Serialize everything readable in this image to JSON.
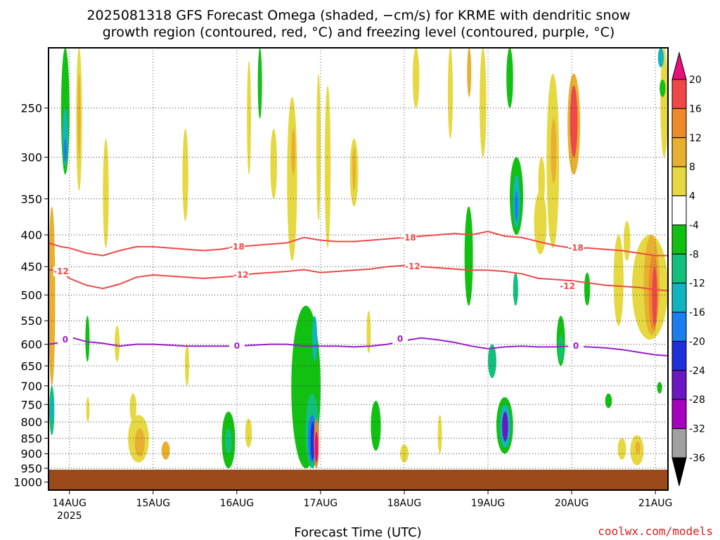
{
  "title": {
    "line1": "2025081318 GFS Forecast Omega (shaded, −cm/s) for KRME with dendritic snow",
    "line2": "growth region (contoured, red, °C) and freezing level (contoured, purple, °C)"
  },
  "credit": "coolwx.com/models",
  "chart_data": {
    "type": "heatmap",
    "xlabel": "Forecast Time (UTC)",
    "ylabel": "",
    "x_ticks": [
      "14AUG",
      "15AUG",
      "16AUG",
      "17AUG",
      "18AUG",
      "19AUG",
      "20AUG",
      "21AUG"
    ],
    "x_year_label": "2025",
    "xlim_days": [
      13.75,
      21.15
    ],
    "y_ticks": [
      250,
      300,
      350,
      400,
      450,
      500,
      550,
      600,
      650,
      700,
      750,
      800,
      850,
      900,
      950,
      1000
    ],
    "ylim_hpa": [
      200,
      1030
    ],
    "y_scale": "log-pressure (reversed)",
    "grid": true,
    "ground_top_hpa": 955,
    "colors": {
      "ground": "#9c4a1a",
      "dendritic_contour": "#f04848",
      "freezing_contour": "#9a1ec8"
    },
    "colorbar": {
      "tick_labels": [
        "20",
        "16",
        "12",
        "8",
        "4",
        "-4",
        "-8",
        "-12",
        "-16",
        "-20",
        "-24",
        "-28",
        "-32",
        "-36"
      ],
      "bins": [
        {
          "range": [
            20,
            24
          ],
          "color": "#e8107a"
        },
        {
          "range": [
            16,
            20
          ],
          "color": "#f04848"
        },
        {
          "range": [
            12,
            16
          ],
          "color": "#ee8a2c"
        },
        {
          "range": [
            8,
            12
          ],
          "color": "#e8b030"
        },
        {
          "range": [
            4,
            8
          ],
          "color": "#e6d840"
        },
        {
          "range": [
            -4,
            4
          ],
          "color": "#ffffff"
        },
        {
          "range": [
            -8,
            -4
          ],
          "color": "#12c012"
        },
        {
          "range": [
            -12,
            -8
          ],
          "color": "#12c07c"
        },
        {
          "range": [
            -16,
            -12
          ],
          "color": "#12b4c0"
        },
        {
          "range": [
            -20,
            -16
          ],
          "color": "#1a7ef0"
        },
        {
          "range": [
            -24,
            -20
          ],
          "color": "#2030d8"
        },
        {
          "range": [
            -28,
            -24
          ],
          "color": "#6a18c0"
        },
        {
          "range": [
            -32,
            -28
          ],
          "color": "#a800c0"
        },
        {
          "range": [
            -36,
            -32
          ],
          "color": "#a0a0a0"
        }
      ]
    },
    "contours": [
      {
        "name": "-18",
        "kind": "dendritic",
        "label": "-18",
        "x": [
          13.75,
          13.9,
          14.0,
          14.2,
          14.4,
          14.6,
          14.8,
          15.0,
          15.2,
          15.4,
          15.6,
          15.8,
          16.0,
          16.2,
          16.4,
          16.6,
          16.8,
          17.0,
          17.2,
          17.4,
          17.6,
          17.8,
          18.0,
          18.2,
          18.4,
          18.6,
          18.8,
          19.0,
          19.2,
          19.4,
          19.6,
          19.8,
          20.0,
          20.2,
          20.4,
          20.6,
          20.8,
          21.0,
          21.15
        ],
        "y": [
          412,
          418,
          420,
          428,
          432,
          424,
          418,
          418,
          420,
          422,
          424,
          422,
          418,
          416,
          414,
          412,
          404,
          408,
          410,
          410,
          408,
          406,
          404,
          402,
          400,
          398,
          400,
          395,
          402,
          404,
          410,
          416,
          420,
          420,
          422,
          424,
          428,
          432,
          432
        ],
        "label_at": [
          [
            16.0,
            418
          ],
          [
            18.05,
            404
          ],
          [
            20.05,
            420
          ]
        ]
      },
      {
        "name": "-12",
        "kind": "dendritic",
        "label": "-12",
        "x": [
          13.75,
          13.9,
          14.0,
          14.2,
          14.4,
          14.6,
          14.8,
          15.0,
          15.2,
          15.4,
          15.6,
          15.8,
          16.0,
          16.2,
          16.4,
          16.6,
          16.8,
          17.0,
          17.2,
          17.4,
          17.6,
          17.8,
          18.0,
          18.2,
          18.4,
          18.6,
          18.8,
          19.0,
          19.2,
          19.4,
          19.6,
          19.8,
          20.0,
          20.2,
          20.4,
          20.6,
          20.8,
          21.0,
          21.15
        ],
        "y": [
          455,
          458,
          470,
          482,
          488,
          480,
          468,
          464,
          466,
          468,
          470,
          468,
          466,
          462,
          460,
          458,
          455,
          460,
          458,
          456,
          454,
          450,
          448,
          450,
          452,
          454,
          456,
          456,
          458,
          462,
          470,
          472,
          474,
          478,
          482,
          484,
          486,
          490,
          492
        ],
        "label_at": [
          [
            13.9,
            458
          ],
          [
            16.05,
            464
          ],
          [
            18.1,
            450
          ],
          [
            19.95,
            484
          ]
        ]
      },
      {
        "name": "0",
        "kind": "freezing",
        "label": "0",
        "x": [
          13.75,
          13.9,
          14.0,
          14.2,
          14.4,
          14.6,
          14.8,
          15.0,
          15.2,
          15.4,
          15.6,
          15.8,
          16.0,
          16.2,
          16.4,
          16.6,
          16.8,
          17.0,
          17.2,
          17.4,
          17.6,
          17.8,
          18.0,
          18.2,
          18.4,
          18.6,
          18.8,
          19.0,
          19.2,
          19.4,
          19.6,
          19.8,
          20.0,
          20.2,
          20.4,
          20.6,
          20.8,
          21.0,
          21.15
        ],
        "y": [
          600,
          596,
          584,
          594,
          598,
          604,
          600,
          600,
          602,
          604,
          604,
          604,
          604,
          602,
          600,
          600,
          604,
          604,
          604,
          606,
          604,
          600,
          592,
          586,
          590,
          596,
          604,
          610,
          606,
          604,
          606,
          606,
          604,
          606,
          608,
          612,
          618,
          624,
          626
        ],
        "label_at": [
          [
            13.95,
            590
          ],
          [
            16.0,
            604
          ],
          [
            17.95,
            588
          ],
          [
            20.05,
            604
          ]
        ]
      }
    ],
    "omega_cells": [
      {
        "x0": 13.75,
        "x1": 13.83,
        "p0": 360,
        "p1": 700,
        "v": 10
      },
      {
        "x0": 13.76,
        "x1": 13.82,
        "p0": 700,
        "p1": 840,
        "v": -10
      },
      {
        "x0": 13.77,
        "x1": 13.81,
        "p0": 730,
        "p1": 800,
        "v": -14
      },
      {
        "x0": 13.9,
        "x1": 14.0,
        "p0": 200,
        "p1": 320,
        "v": -8
      },
      {
        "x0": 13.92,
        "x1": 13.98,
        "p0": 250,
        "p1": 310,
        "v": -14
      },
      {
        "x0": 13.93,
        "x1": 13.97,
        "p0": 280,
        "p1": 305,
        "v": -18
      },
      {
        "x0": 14.08,
        "x1": 14.15,
        "p0": 200,
        "p1": 340,
        "v": 6
      },
      {
        "x0": 14.1,
        "x1": 14.13,
        "p0": 220,
        "p1": 300,
        "v": 10
      },
      {
        "x0": 14.19,
        "x1": 14.24,
        "p0": 540,
        "p1": 640,
        "v": -6
      },
      {
        "x0": 14.2,
        "x1": 14.24,
        "p0": 730,
        "p1": 800,
        "v": 6
      },
      {
        "x0": 14.4,
        "x1": 14.47,
        "p0": 280,
        "p1": 420,
        "v": 6
      },
      {
        "x0": 14.54,
        "x1": 14.6,
        "p0": 560,
        "p1": 640,
        "v": 6
      },
      {
        "x0": 14.7,
        "x1": 14.95,
        "p0": 780,
        "p1": 930,
        "v": 6
      },
      {
        "x0": 14.78,
        "x1": 14.9,
        "p0": 820,
        "p1": 910,
        "v": 10
      },
      {
        "x0": 14.72,
        "x1": 14.8,
        "p0": 720,
        "p1": 800,
        "v": 5
      },
      {
        "x0": 15.1,
        "x1": 15.2,
        "p0": 860,
        "p1": 920,
        "v": 8
      },
      {
        "x0": 15.35,
        "x1": 15.42,
        "p0": 270,
        "p1": 380,
        "v": 6
      },
      {
        "x0": 15.38,
        "x1": 15.43,
        "p0": 600,
        "p1": 700,
        "v": 6
      },
      {
        "x0": 15.82,
        "x1": 15.98,
        "p0": 770,
        "p1": 950,
        "v": -8
      },
      {
        "x0": 15.86,
        "x1": 15.94,
        "p0": 820,
        "p1": 900,
        "v": -12
      },
      {
        "x0": 16.1,
        "x1": 16.18,
        "p0": 790,
        "p1": 880,
        "v": 5
      },
      {
        "x0": 16.12,
        "x1": 16.17,
        "p0": 210,
        "p1": 320,
        "v": 5
      },
      {
        "x0": 16.25,
        "x1": 16.3,
        "p0": 200,
        "p1": 260,
        "v": -6
      },
      {
        "x0": 16.4,
        "x1": 16.48,
        "p0": 270,
        "p1": 350,
        "v": 5
      },
      {
        "x0": 16.6,
        "x1": 16.72,
        "p0": 240,
        "p1": 440,
        "v": 6
      },
      {
        "x0": 16.65,
        "x1": 16.7,
        "p0": 270,
        "p1": 320,
        "v": 10
      },
      {
        "x0": 16.65,
        "x1": 17.0,
        "p0": 520,
        "p1": 950,
        "v": -6
      },
      {
        "x0": 16.82,
        "x1": 16.98,
        "p0": 720,
        "p1": 950,
        "v": -12
      },
      {
        "x0": 16.85,
        "x1": 16.95,
        "p0": 780,
        "p1": 930,
        "v": -18
      },
      {
        "x0": 16.88,
        "x1": 16.93,
        "p0": 800,
        "p1": 920,
        "v": -24
      },
      {
        "x0": 16.92,
        "x1": 16.98,
        "p0": 790,
        "p1": 950,
        "v": 14
      },
      {
        "x0": 16.93,
        "x1": 16.97,
        "p0": 830,
        "p1": 930,
        "v": 20
      },
      {
        "x0": 16.9,
        "x1": 16.96,
        "p0": 540,
        "p1": 640,
        "v": -14
      },
      {
        "x0": 16.95,
        "x1": 17.0,
        "p0": 220,
        "p1": 380,
        "v": 6
      },
      {
        "x0": 17.05,
        "x1": 17.12,
        "p0": 230,
        "p1": 420,
        "v": 6
      },
      {
        "x0": 17.35,
        "x1": 17.45,
        "p0": 280,
        "p1": 360,
        "v": 6
      },
      {
        "x0": 17.38,
        "x1": 17.42,
        "p0": 290,
        "p1": 340,
        "v": 10
      },
      {
        "x0": 17.55,
        "x1": 17.6,
        "p0": 530,
        "p1": 620,
        "v": 6
      },
      {
        "x0": 17.6,
        "x1": 17.72,
        "p0": 740,
        "p1": 890,
        "v": -7
      },
      {
        "x0": 17.95,
        "x1": 18.05,
        "p0": 870,
        "p1": 930,
        "v": 6
      },
      {
        "x0": 18.1,
        "x1": 18.18,
        "p0": 200,
        "p1": 250,
        "v": 6
      },
      {
        "x0": 18.4,
        "x1": 18.45,
        "p0": 780,
        "p1": 900,
        "v": 5
      },
      {
        "x0": 18.52,
        "x1": 18.58,
        "p0": 200,
        "p1": 280,
        "v": 6
      },
      {
        "x0": 18.75,
        "x1": 18.8,
        "p0": 200,
        "p1": 240,
        "v": 8
      },
      {
        "x0": 18.72,
        "x1": 18.82,
        "p0": 360,
        "p1": 520,
        "v": -6
      },
      {
        "x0": 18.9,
        "x1": 18.98,
        "p0": 200,
        "p1": 300,
        "v": 6
      },
      {
        "x0": 19.0,
        "x1": 19.1,
        "p0": 600,
        "p1": 680,
        "v": -10
      },
      {
        "x0": 19.1,
        "x1": 19.3,
        "p0": 730,
        "p1": 900,
        "v": -8
      },
      {
        "x0": 19.14,
        "x1": 19.27,
        "p0": 750,
        "p1": 880,
        "v": -16
      },
      {
        "x0": 19.17,
        "x1": 19.24,
        "p0": 770,
        "p1": 860,
        "v": -26
      },
      {
        "x0": 19.22,
        "x1": 19.3,
        "p0": 200,
        "p1": 250,
        "v": -6
      },
      {
        "x0": 19.26,
        "x1": 19.42,
        "p0": 300,
        "p1": 400,
        "v": -7
      },
      {
        "x0": 19.3,
        "x1": 19.38,
        "p0": 320,
        "p1": 390,
        "v": -14
      },
      {
        "x0": 19.32,
        "x1": 19.36,
        "p0": 340,
        "p1": 380,
        "v": -20
      },
      {
        "x0": 19.3,
        "x1": 19.36,
        "p0": 460,
        "p1": 520,
        "v": -10
      },
      {
        "x0": 19.55,
        "x1": 19.7,
        "p0": 340,
        "p1": 430,
        "v": 6
      },
      {
        "x0": 19.6,
        "x1": 19.68,
        "p0": 300,
        "p1": 360,
        "v": 5
      },
      {
        "x0": 19.7,
        "x1": 19.85,
        "p0": 220,
        "p1": 420,
        "v": 6
      },
      {
        "x0": 19.75,
        "x1": 19.82,
        "p0": 260,
        "p1": 330,
        "v": 10
      },
      {
        "x0": 19.82,
        "x1": 19.92,
        "p0": 540,
        "p1": 650,
        "v": -8
      },
      {
        "x0": 19.84,
        "x1": 19.9,
        "p0": 580,
        "p1": 640,
        "v": -12
      },
      {
        "x0": 19.95,
        "x1": 20.1,
        "p0": 220,
        "p1": 320,
        "v": 8
      },
      {
        "x0": 19.98,
        "x1": 20.07,
        "p0": 230,
        "p1": 300,
        "v": 16
      },
      {
        "x0": 20.02,
        "x1": 20.06,
        "p0": 240,
        "p1": 260,
        "v": 18
      },
      {
        "x0": 20.15,
        "x1": 20.22,
        "p0": 460,
        "p1": 520,
        "v": -6
      },
      {
        "x0": 20.4,
        "x1": 20.48,
        "p0": 720,
        "p1": 760,
        "v": -6
      },
      {
        "x0": 20.5,
        "x1": 20.62,
        "p0": 400,
        "p1": 560,
        "v": 6
      },
      {
        "x0": 20.55,
        "x1": 20.65,
        "p0": 850,
        "p1": 920,
        "v": 6
      },
      {
        "x0": 20.62,
        "x1": 20.7,
        "p0": 380,
        "p1": 440,
        "v": 6
      },
      {
        "x0": 20.7,
        "x1": 20.86,
        "p0": 840,
        "p1": 940,
        "v": 6
      },
      {
        "x0": 20.76,
        "x1": 20.82,
        "p0": 860,
        "p1": 900,
        "v": 10
      },
      {
        "x0": 20.72,
        "x1": 21.15,
        "p0": 400,
        "p1": 590,
        "v": 6
      },
      {
        "x0": 20.86,
        "x1": 21.05,
        "p0": 400,
        "p1": 580,
        "v": 9
      },
      {
        "x0": 20.92,
        "x1": 21.03,
        "p0": 430,
        "p1": 570,
        "v": 13
      },
      {
        "x0": 20.96,
        "x1": 21.02,
        "p0": 450,
        "p1": 560,
        "v": 17
      },
      {
        "x0": 21.06,
        "x1": 21.15,
        "p0": 200,
        "p1": 300,
        "v": 6
      },
      {
        "x0": 21.03,
        "x1": 21.1,
        "p0": 200,
        "p1": 215,
        "v": -14
      },
      {
        "x0": 21.05,
        "x1": 21.12,
        "p0": 225,
        "p1": 240,
        "v": -6
      },
      {
        "x0": 21.02,
        "x1": 21.08,
        "p0": 690,
        "p1": 720,
        "v": -6
      }
    ]
  }
}
